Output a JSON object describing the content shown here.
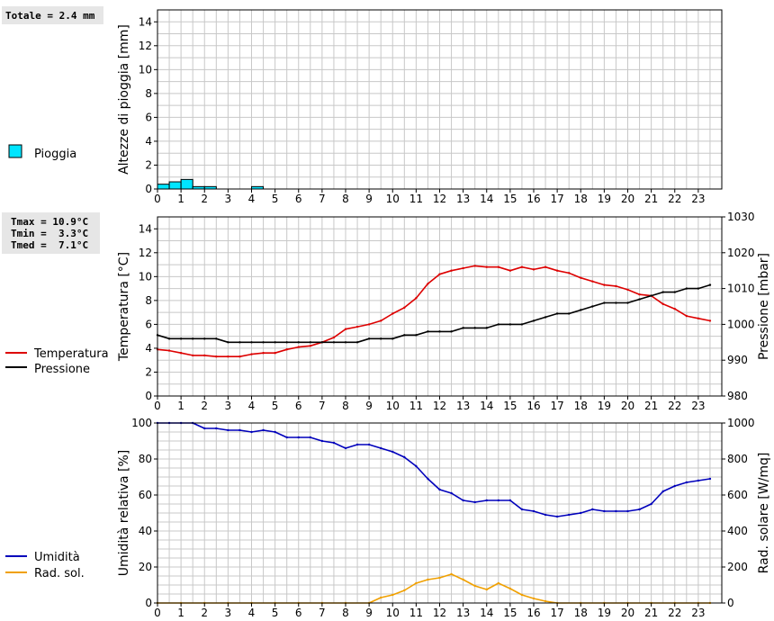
{
  "stats": {
    "rain_total": "Totale = 2.4 mm",
    "tmax": "Tmax = 10.9°C",
    "tmin": "Tmin =  3.3°C",
    "tmed": "Tmed =  7.1°C"
  },
  "colors": {
    "rain": "#00e5ff",
    "temperature": "#dd0000",
    "pressure": "#000000",
    "humidity": "#0000bb",
    "radiation": "#f0a000",
    "grid": "#c8c8c8",
    "statbox": "#e6e6e6"
  },
  "legend": {
    "rain": "Pioggia",
    "temperature": "Temperatura",
    "pressure": "Pressione",
    "humidity": "Umidità",
    "radiation": "Rad. sol."
  },
  "chart_data": [
    {
      "type": "bar",
      "ylabel": "Altezze di pioggia [mm]",
      "xlim": [
        0,
        24
      ],
      "ylim": [
        0,
        15
      ],
      "x_ticks": [
        0,
        1,
        2,
        3,
        4,
        5,
        6,
        7,
        8,
        9,
        10,
        11,
        12,
        13,
        14,
        15,
        16,
        17,
        18,
        19,
        20,
        21,
        22,
        23
      ],
      "y_ticks": [
        0,
        2,
        4,
        6,
        8,
        10,
        12,
        14
      ],
      "grid": true,
      "series": [
        {
          "name": "Pioggia",
          "bin_width": 0.5,
          "x": [
            0,
            0.5,
            1.0,
            1.5,
            2.0,
            4.0
          ],
          "values": [
            0.4,
            0.6,
            0.8,
            0.2,
            0.2,
            0.2
          ]
        }
      ]
    },
    {
      "type": "line",
      "ylabel": "Temperatura [°C]",
      "y2label": "Pressione [mbar]",
      "xlim": [
        0,
        24
      ],
      "ylim": [
        0,
        15
      ],
      "y2lim": [
        980,
        1030
      ],
      "x_ticks": [
        0,
        1,
        2,
        3,
        4,
        5,
        6,
        7,
        8,
        9,
        10,
        11,
        12,
        13,
        14,
        15,
        16,
        17,
        18,
        19,
        20,
        21,
        22,
        23
      ],
      "y_ticks": [
        0,
        2,
        4,
        6,
        8,
        10,
        12,
        14
      ],
      "y2_ticks": [
        980,
        990,
        1000,
        1010,
        1020,
        1030
      ],
      "grid": true,
      "series": [
        {
          "name": "Temperatura",
          "axis": "left",
          "x": [
            0,
            0.5,
            1,
            1.5,
            2,
            2.5,
            3,
            3.5,
            4,
            4.5,
            5,
            5.5,
            6,
            6.5,
            7,
            7.5,
            8,
            8.5,
            9,
            9.5,
            10,
            10.5,
            11,
            11.5,
            12,
            12.5,
            13,
            13.5,
            14,
            14.5,
            15,
            15.5,
            16,
            16.5,
            17,
            17.5,
            18,
            18.5,
            19,
            19.5,
            20,
            20.5,
            21,
            21.5,
            22,
            22.5,
            23,
            23.5
          ],
          "values": [
            3.9,
            3.8,
            3.6,
            3.4,
            3.4,
            3.3,
            3.3,
            3.3,
            3.5,
            3.6,
            3.6,
            3.9,
            4.1,
            4.2,
            4.5,
            4.9,
            5.6,
            5.8,
            6.0,
            6.3,
            6.9,
            7.4,
            8.2,
            9.4,
            10.2,
            10.5,
            10.7,
            10.9,
            10.8,
            10.8,
            10.5,
            10.8,
            10.6,
            10.8,
            10.5,
            10.3,
            9.9,
            9.6,
            9.3,
            9.2,
            8.9,
            8.5,
            8.4,
            7.7,
            7.3,
            6.7,
            6.5,
            6.3
          ]
        },
        {
          "name": "Pressione",
          "axis": "right",
          "x": [
            0,
            0.5,
            1,
            1.5,
            2,
            2.5,
            3,
            3.5,
            4,
            4.5,
            5,
            5.5,
            6,
            6.5,
            7,
            7.5,
            8,
            8.5,
            9,
            9.5,
            10,
            10.5,
            11,
            11.5,
            12,
            12.5,
            13,
            13.5,
            14,
            14.5,
            15,
            15.5,
            16,
            16.5,
            17,
            17.5,
            18,
            18.5,
            19,
            19.5,
            20,
            20.5,
            21,
            21.5,
            22,
            22.5,
            23,
            23.5
          ],
          "values": [
            997,
            996,
            996,
            996,
            996,
            996,
            995,
            995,
            995,
            995,
            995,
            995,
            995,
            995,
            995,
            995,
            995,
            995,
            996,
            996,
            996,
            997,
            997,
            998,
            998,
            998,
            999,
            999,
            999,
            1000,
            1000,
            1000,
            1001,
            1002,
            1003,
            1003,
            1004,
            1005,
            1006,
            1006,
            1006,
            1007,
            1008,
            1009,
            1009,
            1010,
            1010,
            1011
          ]
        }
      ]
    },
    {
      "type": "line",
      "ylabel": "Umidità relativa [%]",
      "y2label": "Rad. solare [W/mq]",
      "xlim": [
        0,
        24
      ],
      "ylim": [
        0,
        100
      ],
      "y2lim": [
        0,
        1000
      ],
      "x_ticks": [
        0,
        1,
        2,
        3,
        4,
        5,
        6,
        7,
        8,
        9,
        10,
        11,
        12,
        13,
        14,
        15,
        16,
        17,
        18,
        19,
        20,
        21,
        22,
        23
      ],
      "y_ticks": [
        0,
        20,
        40,
        60,
        80,
        100
      ],
      "y2_ticks": [
        0,
        200,
        400,
        600,
        800,
        1000
      ],
      "grid": true,
      "series": [
        {
          "name": "Umidità",
          "axis": "left",
          "x": [
            0,
            0.5,
            1,
            1.5,
            2,
            2.5,
            3,
            3.5,
            4,
            4.5,
            5,
            5.5,
            6,
            6.5,
            7,
            7.5,
            8,
            8.5,
            9,
            9.5,
            10,
            10.5,
            11,
            11.5,
            12,
            12.5,
            13,
            13.5,
            14,
            14.5,
            15,
            15.5,
            16,
            16.5,
            17,
            17.5,
            18,
            18.5,
            19,
            19.5,
            20,
            20.5,
            21,
            21.5,
            22,
            22.5,
            23,
            23.5
          ],
          "values": [
            100,
            100,
            100,
            100,
            97,
            97,
            96,
            96,
            95,
            96,
            95,
            92,
            92,
            92,
            90,
            89,
            86,
            88,
            88,
            86,
            84,
            81,
            76,
            69,
            63,
            61,
            57,
            56,
            57,
            57,
            57,
            52,
            51,
            49,
            48,
            49,
            50,
            52,
            51,
            51,
            51,
            52,
            55,
            62,
            65,
            67,
            68,
            69
          ]
        },
        {
          "name": "Rad. sol.",
          "axis": "right",
          "x": [
            0,
            1,
            2,
            3,
            4,
            5,
            6,
            7,
            8,
            9,
            9.5,
            10,
            10.5,
            11,
            11.5,
            12,
            12.5,
            13,
            13.5,
            14,
            14.5,
            15,
            15.5,
            16,
            16.5,
            17,
            18,
            19,
            20,
            21,
            22,
            23,
            23.5
          ],
          "values": [
            0,
            0,
            0,
            0,
            0,
            0,
            0,
            0,
            0,
            0,
            30,
            45,
            70,
            110,
            130,
            140,
            160,
            130,
            95,
            75,
            110,
            80,
            45,
            25,
            10,
            0,
            0,
            0,
            0,
            0,
            0,
            0,
            0
          ]
        }
      ]
    }
  ]
}
